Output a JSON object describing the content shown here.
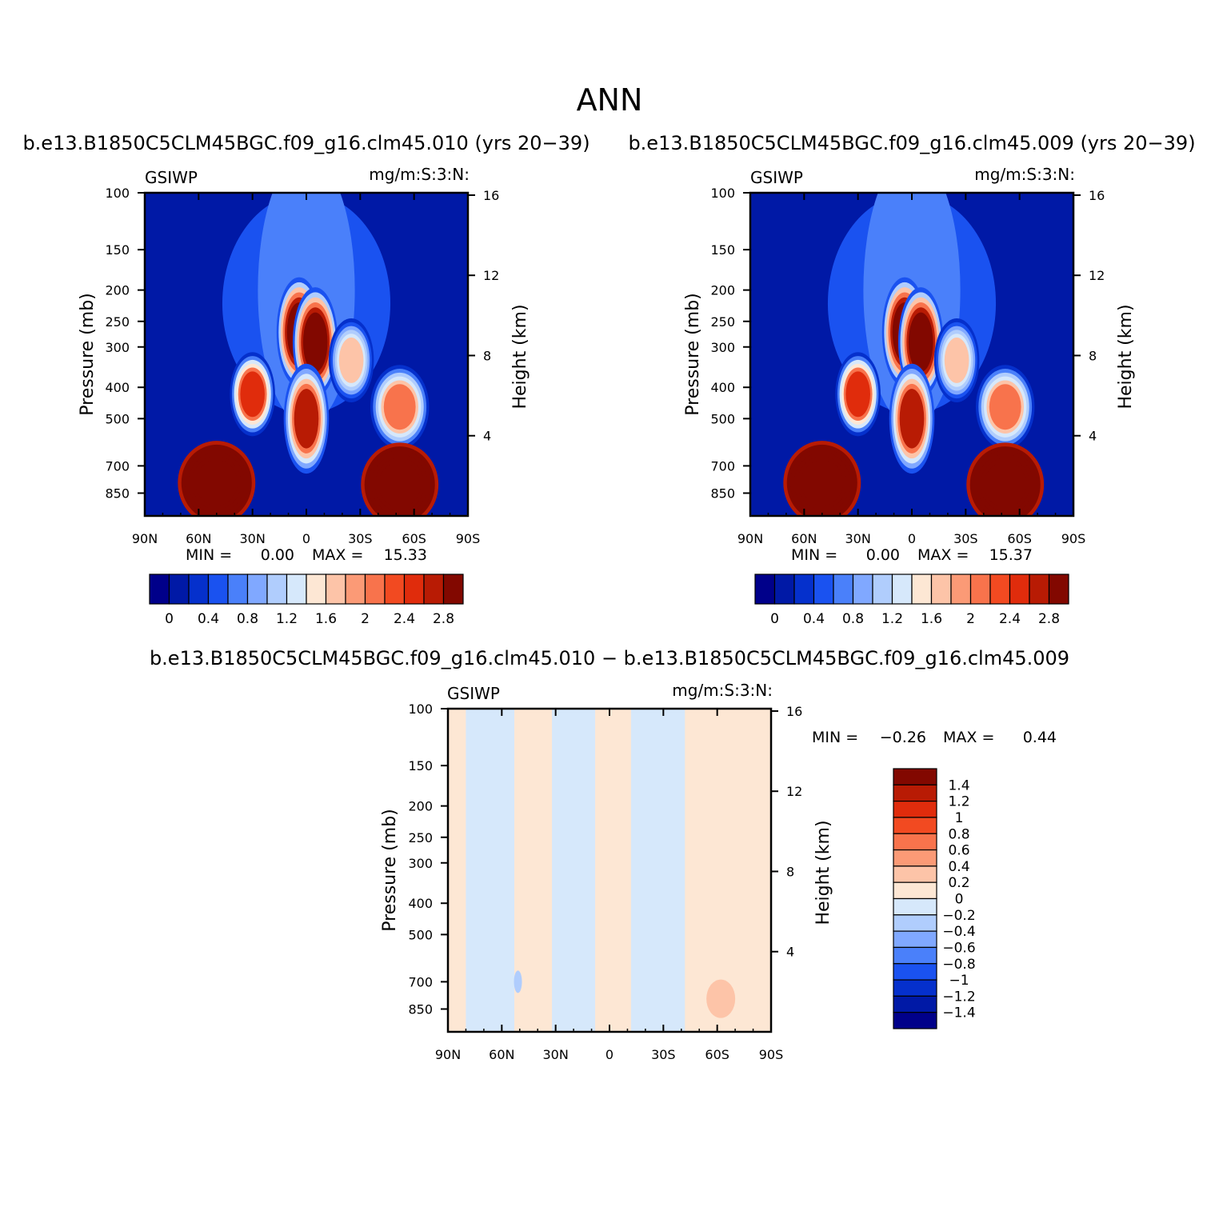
{
  "figure": {
    "title": "ANN"
  },
  "chart_data": [
    {
      "type": "heatmap",
      "subtitle": "b.e13.B1850C5CLM45BGC.f09_g16.clm45.010 (yrs 20−39)",
      "left_string": "GSIWP",
      "right_string": "mg/m:S:3:N:",
      "ylabel": "Pressure (mb)",
      "ylabel_right": "Height (km)",
      "x_ticks": [
        "90N",
        "60N",
        "30N",
        "0",
        "30S",
        "60S",
        "90S"
      ],
      "x_range": [
        90,
        -90
      ],
      "y_ticks": [
        100,
        150,
        200,
        250,
        300,
        400,
        500,
        700,
        850
      ],
      "y_range": [
        100,
        1000
      ],
      "y_scale": "log",
      "height_ticks": [
        16,
        12,
        8,
        4
      ],
      "stats": {
        "min_label": "MIN =",
        "min_value": "0.00",
        "max_label": "MAX =",
        "max_value": "15.33"
      },
      "colorbar": {
        "orientation": "horizontal",
        "levels": [
          0,
          0.2,
          0.4,
          0.6,
          0.8,
          1.0,
          1.2,
          1.4,
          1.6,
          1.8,
          2.0,
          2.2,
          2.4,
          2.6,
          2.8
        ],
        "tick_labels": [
          "0",
          "0.4",
          "0.8",
          "1.2",
          "1.6",
          "2",
          "2.4",
          "2.8"
        ],
        "colors": [
          "#00008a",
          "#0019a6",
          "#0530cc",
          "#1a52f0",
          "#4a80fa",
          "#80a8ff",
          "#b0cdfd",
          "#d6e8fb",
          "#fde7d4",
          "#fdc4a8",
          "#fb9a76",
          "#f8734c",
          "#f24a21",
          "#e02c0c",
          "#b81b04",
          "#820800"
        ]
      },
      "features": [
        {
          "x": 50,
          "p": 790,
          "value": 16
        },
        {
          "x": 30,
          "p": 420,
          "value": 2.4
        },
        {
          "x": 4,
          "p": 270,
          "value": 3.2
        },
        {
          "x": -5,
          "p": 290,
          "value": 3.2
        },
        {
          "x": 0,
          "p": 500,
          "value": 2.6
        },
        {
          "x": -52,
          "p": 460,
          "value": 2.0
        },
        {
          "x": -52,
          "p": 800,
          "value": 16
        },
        {
          "x": -25,
          "p": 330,
          "value": 1.6
        }
      ]
    },
    {
      "type": "heatmap",
      "subtitle": "b.e13.B1850C5CLM45BGC.f09_g16.clm45.009 (yrs 20−39)",
      "left_string": "GSIWP",
      "right_string": "mg/m:S:3:N:",
      "ylabel": "Pressure (mb)",
      "ylabel_right": "Height (km)",
      "x_ticks": [
        "90N",
        "60N",
        "30N",
        "0",
        "30S",
        "60S",
        "90S"
      ],
      "x_range": [
        90,
        -90
      ],
      "y_ticks": [
        100,
        150,
        200,
        250,
        300,
        400,
        500,
        700,
        850
      ],
      "y_range": [
        100,
        1000
      ],
      "y_scale": "log",
      "height_ticks": [
        16,
        12,
        8,
        4
      ],
      "stats": {
        "min_label": "MIN =",
        "min_value": "0.00",
        "max_label": "MAX =",
        "max_value": "15.37"
      },
      "colorbar": {
        "orientation": "horizontal",
        "levels": [
          0,
          0.2,
          0.4,
          0.6,
          0.8,
          1.0,
          1.2,
          1.4,
          1.6,
          1.8,
          2.0,
          2.2,
          2.4,
          2.6,
          2.8
        ],
        "tick_labels": [
          "0",
          "0.4",
          "0.8",
          "1.2",
          "1.6",
          "2",
          "2.4",
          "2.8"
        ],
        "colors": [
          "#00008a",
          "#0019a6",
          "#0530cc",
          "#1a52f0",
          "#4a80fa",
          "#80a8ff",
          "#b0cdfd",
          "#d6e8fb",
          "#fde7d4",
          "#fdc4a8",
          "#fb9a76",
          "#f8734c",
          "#f24a21",
          "#e02c0c",
          "#b81b04",
          "#820800"
        ]
      },
      "features": [
        {
          "x": 50,
          "p": 790,
          "value": 16
        },
        {
          "x": 30,
          "p": 420,
          "value": 2.4
        },
        {
          "x": 4,
          "p": 270,
          "value": 3.2
        },
        {
          "x": -5,
          "p": 290,
          "value": 3.2
        },
        {
          "x": 0,
          "p": 500,
          "value": 2.6
        },
        {
          "x": -52,
          "p": 460,
          "value": 2.0
        },
        {
          "x": -52,
          "p": 800,
          "value": 16
        },
        {
          "x": -25,
          "p": 330,
          "value": 1.6
        }
      ]
    },
    {
      "type": "heatmap",
      "subtitle": "b.e13.B1850C5CLM45BGC.f09_g16.clm45.010 − b.e13.B1850C5CLM45BGC.f09_g16.clm45.009",
      "left_string": "GSIWP",
      "right_string": "mg/m:S:3:N:",
      "ylabel": "Pressure (mb)",
      "ylabel_right": "Height (km)",
      "x_ticks": [
        "90N",
        "60N",
        "30N",
        "0",
        "30S",
        "60S",
        "90S"
      ],
      "x_range": [
        90,
        -90
      ],
      "y_ticks": [
        100,
        150,
        200,
        250,
        300,
        400,
        500,
        700,
        850
      ],
      "y_range": [
        100,
        1000
      ],
      "y_scale": "log",
      "height_ticks": [
        16,
        12,
        8,
        4
      ],
      "stats": {
        "min_label": "MIN =",
        "min_value": "−0.26",
        "max_label": "MAX =",
        "max_value": "0.44"
      },
      "colorbar": {
        "orientation": "vertical",
        "levels": [
          -1.4,
          -1.2,
          -1,
          -0.8,
          -0.6,
          -0.4,
          -0.2,
          0,
          0.2,
          0.4,
          0.6,
          0.8,
          1,
          1.2,
          1.4
        ],
        "tick_labels": [
          "1.4",
          "1.2",
          "1",
          "0.8",
          "0.6",
          "0.4",
          "0.2",
          "0",
          "−0.2",
          "−0.4",
          "−0.6",
          "−0.8",
          "−1",
          "−1.2",
          "−1.4"
        ],
        "colors": [
          "#00008a",
          "#0019a6",
          "#0530cc",
          "#1a52f0",
          "#4a80fa",
          "#80a8ff",
          "#b0cdfd",
          "#d6e8fb",
          "#fde7d4",
          "#fdc4a8",
          "#fb9a76",
          "#f8734c",
          "#f24a21",
          "#e02c0c",
          "#b81b04",
          "#820800"
        ]
      },
      "bands": [
        {
          "x": [
            90,
            80
          ],
          "sign": "pos"
        },
        {
          "x": [
            80,
            53
          ],
          "sign": "neg"
        },
        {
          "x": [
            53,
            32
          ],
          "sign": "pos"
        },
        {
          "x": [
            32,
            8
          ],
          "sign": "neg"
        },
        {
          "x": [
            8,
            -12
          ],
          "sign": "pos"
        },
        {
          "x": [
            -12,
            -42
          ],
          "sign": "neg"
        },
        {
          "x": [
            -42,
            -90
          ],
          "sign": "pos"
        }
      ],
      "features": [
        {
          "x": -62,
          "p": 790,
          "value": 0.44
        },
        {
          "x": 51,
          "p": 700,
          "value": -0.26
        }
      ]
    }
  ]
}
